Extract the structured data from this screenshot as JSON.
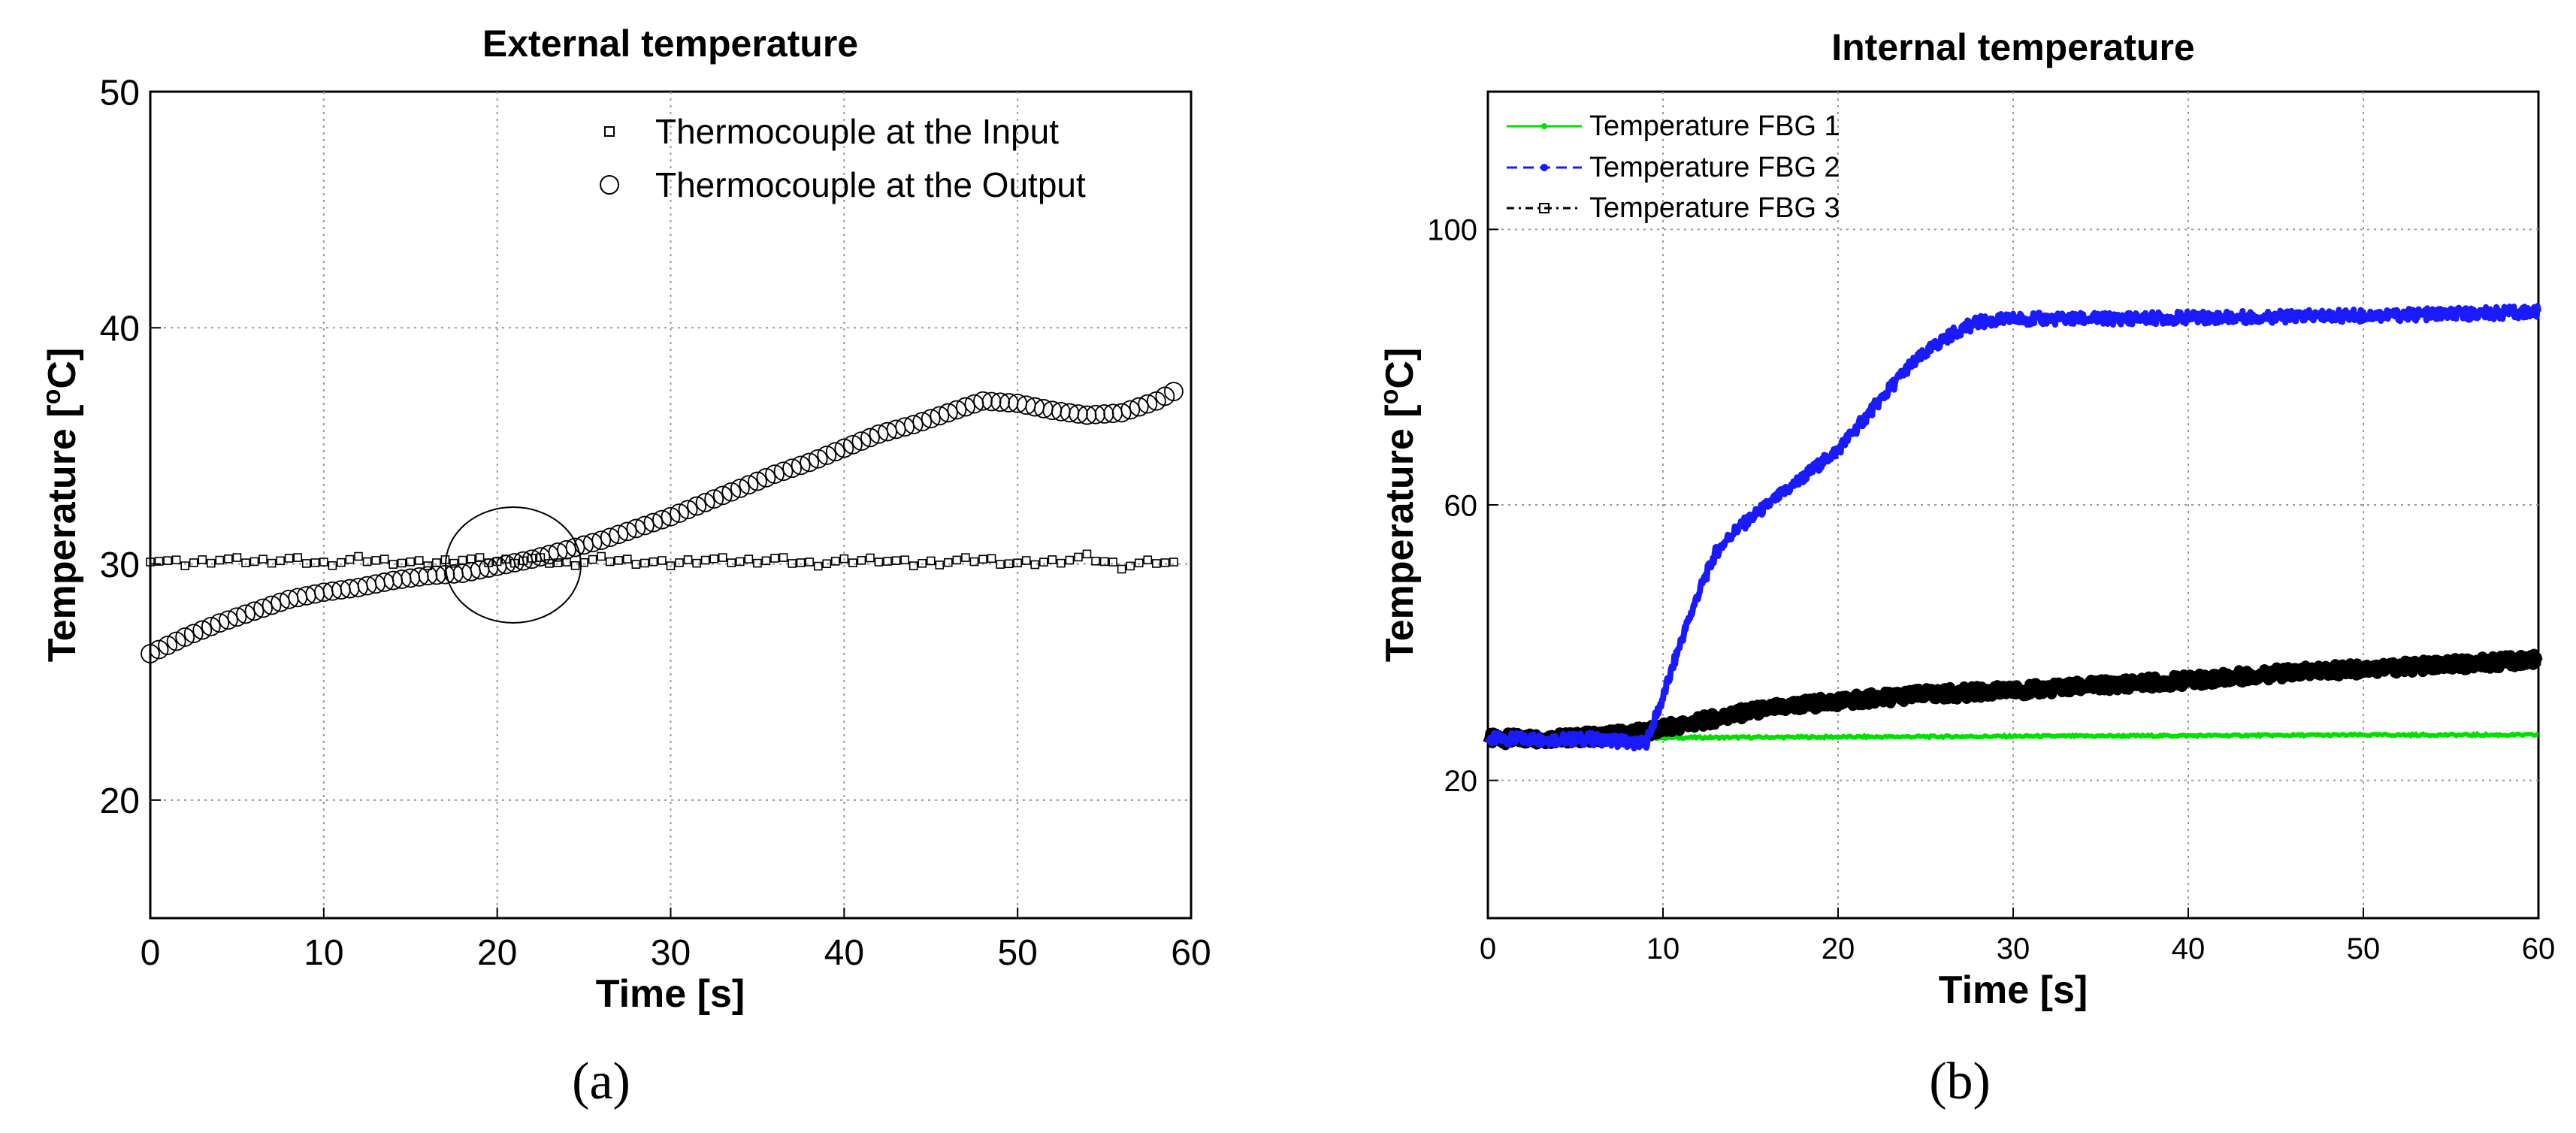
{
  "figure": {
    "panels": [
      {
        "label": "(a)",
        "letter": "a"
      },
      {
        "label": "(b)",
        "letter": "b"
      }
    ]
  },
  "chart_data": [
    {
      "type": "scatter",
      "title": "External temperature",
      "xlabel": "Time [s]",
      "ylabel_main": "Temperature [",
      "ylabel_sup": "o",
      "ylabel_tail": "C]",
      "xlim": [
        0,
        60
      ],
      "ylim": [
        15,
        50
      ],
      "xticks": [
        0,
        10,
        20,
        30,
        40,
        50,
        60
      ],
      "yticks": [
        20,
        30,
        40,
        50
      ],
      "grid": true,
      "legend_position": "top-right",
      "annotations": [
        "ellipse highlighting crossing point near t = 21 s, T = 30 °C"
      ],
      "series": [
        {
          "name": "Thermocouple at the Input",
          "marker": "square",
          "color": "#000000",
          "points": [
            [
              0,
              30.2
            ],
            [
              2,
              30.0
            ],
            [
              4,
              30.2
            ],
            [
              6,
              30.1
            ],
            [
              8,
              30.2
            ],
            [
              10,
              30.0
            ],
            [
              12,
              30.2
            ],
            [
              14,
              30.1
            ],
            [
              16,
              30.0
            ],
            [
              18,
              30.2
            ],
            [
              20,
              30.1
            ],
            [
              22,
              30.2
            ],
            [
              24,
              30.0
            ],
            [
              26,
              30.2
            ],
            [
              28,
              30.1
            ],
            [
              30,
              30.0
            ],
            [
              32,
              30.2
            ],
            [
              34,
              30.1
            ],
            [
              36,
              30.2
            ],
            [
              38,
              30.0
            ],
            [
              40,
              30.1
            ],
            [
              42,
              30.2
            ],
            [
              44,
              30.0
            ],
            [
              46,
              30.1
            ],
            [
              48,
              30.2
            ],
            [
              50,
              30.0
            ],
            [
              52,
              30.1
            ],
            [
              54,
              30.3
            ],
            [
              56,
              29.9
            ],
            [
              58,
              30.1
            ],
            [
              59,
              30.0
            ]
          ]
        },
        {
          "name": "Thermocouple at the Output",
          "marker": "circle",
          "color": "#000000",
          "points": [
            [
              0,
              26.2
            ],
            [
              2,
              26.9
            ],
            [
              4,
              27.5
            ],
            [
              6,
              28.0
            ],
            [
              8,
              28.5
            ],
            [
              10,
              28.8
            ],
            [
              12,
              29.0
            ],
            [
              14,
              29.3
            ],
            [
              16,
              29.5
            ],
            [
              18,
              29.6
            ],
            [
              20,
              29.9
            ],
            [
              22,
              30.2
            ],
            [
              24,
              30.6
            ],
            [
              26,
              31.0
            ],
            [
              28,
              31.5
            ],
            [
              30,
              32.0
            ],
            [
              32,
              32.6
            ],
            [
              34,
              33.2
            ],
            [
              36,
              33.8
            ],
            [
              38,
              34.3
            ],
            [
              40,
              34.9
            ],
            [
              42,
              35.5
            ],
            [
              44,
              35.9
            ],
            [
              46,
              36.4
            ],
            [
              48,
              36.9
            ],
            [
              50,
              36.8
            ],
            [
              52,
              36.5
            ],
            [
              54,
              36.3
            ],
            [
              56,
              36.4
            ],
            [
              58,
              36.9
            ],
            [
              59,
              37.3
            ]
          ]
        }
      ]
    },
    {
      "type": "line",
      "title": "Internal temperature",
      "xlabel": "Time [s]",
      "ylabel_main": "Temperature [",
      "ylabel_sup": "o",
      "ylabel_tail": "C]",
      "xlim": [
        0,
        60
      ],
      "ylim": [
        0,
        120
      ],
      "xticks": [
        0,
        10,
        20,
        30,
        40,
        50,
        60
      ],
      "yticks": [
        20,
        60,
        100
      ],
      "grid": true,
      "legend_position": "top-left",
      "series": [
        {
          "name": "Temperature FBG 1",
          "color": "#00e000",
          "marker": "dot",
          "points": [
            [
              0,
              26
            ],
            [
              5,
              26.1
            ],
            [
              10,
              26.2
            ],
            [
              20,
              26.3
            ],
            [
              30,
              26.4
            ],
            [
              40,
              26.5
            ],
            [
              50,
              26.6
            ],
            [
              60,
              26.6
            ]
          ]
        },
        {
          "name": "Temperature FBG 2",
          "color": "#1a1aff",
          "marker": "dot",
          "points": [
            [
              0,
              26
            ],
            [
              6,
              26
            ],
            [
              8,
              25.6
            ],
            [
              9,
              25.3
            ],
            [
              10,
              32
            ],
            [
              11,
              40
            ],
            [
              12,
              47
            ],
            [
              13,
              53
            ],
            [
              14,
              56
            ],
            [
              15,
              58
            ],
            [
              16,
              60
            ],
            [
              17,
              62
            ],
            [
              18,
              64
            ],
            [
              19,
              66
            ],
            [
              20,
              68
            ],
            [
              21,
              71
            ],
            [
              22,
              74
            ],
            [
              23,
              77
            ],
            [
              24,
              80
            ],
            [
              25,
              82
            ],
            [
              26,
              84
            ],
            [
              27,
              85.5
            ],
            [
              28,
              86.5
            ],
            [
              30,
              87
            ],
            [
              35,
              87
            ],
            [
              40,
              87.2
            ],
            [
              45,
              87.3
            ],
            [
              50,
              87.5
            ],
            [
              55,
              87.7
            ],
            [
              60,
              88
            ]
          ]
        },
        {
          "name": "Temperature FBG 3",
          "color": "#000000",
          "marker": "square",
          "points": [
            [
              0,
              26
            ],
            [
              5,
              26.2
            ],
            [
              9,
              27
            ],
            [
              11,
              28
            ],
            [
              13,
              29
            ],
            [
              15,
              30
            ],
            [
              18,
              31
            ],
            [
              20,
              31.5
            ],
            [
              25,
              32.5
            ],
            [
              30,
              33
            ],
            [
              35,
              33.8
            ],
            [
              40,
              34.5
            ],
            [
              45,
              35.5
            ],
            [
              50,
              36.2
            ],
            [
              55,
              36.8
            ],
            [
              60,
              37.5
            ]
          ]
        }
      ]
    }
  ]
}
